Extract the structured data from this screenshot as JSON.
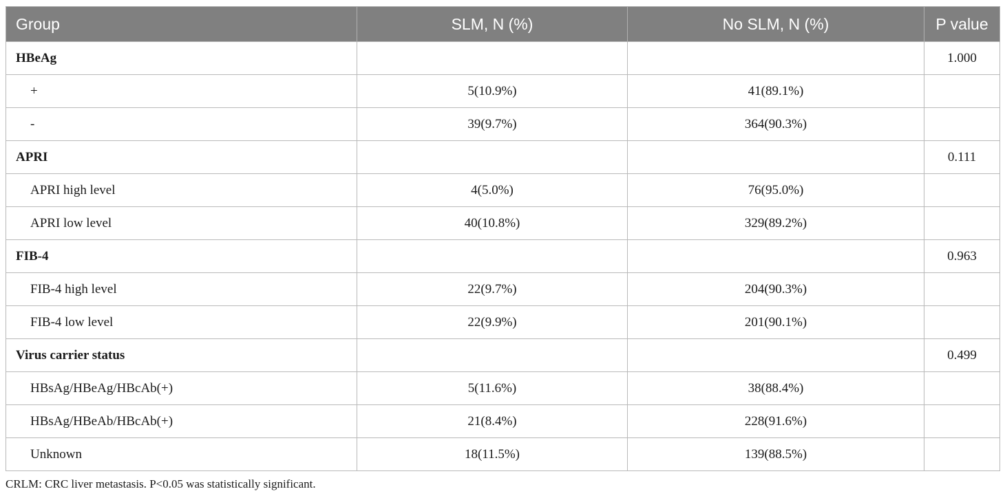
{
  "table": {
    "headers": [
      "Group",
      "SLM, N (%)",
      "No SLM, N (%)",
      "P value"
    ],
    "rows": [
      {
        "type": "group",
        "label": "HBeAg",
        "slm": "",
        "noslm": "",
        "p": "1.000"
      },
      {
        "type": "sub",
        "label": "+",
        "slm": "5(10.9%)",
        "noslm": "41(89.1%)",
        "p": ""
      },
      {
        "type": "sub",
        "label": "-",
        "slm": "39(9.7%)",
        "noslm": "364(90.3%)",
        "p": ""
      },
      {
        "type": "group",
        "label": "APRI",
        "slm": "",
        "noslm": "",
        "p": "0.111"
      },
      {
        "type": "sub",
        "label": "APRI high level",
        "slm": "4(5.0%)",
        "noslm": "76(95.0%)",
        "p": ""
      },
      {
        "type": "sub",
        "label": "APRI low level",
        "slm": "40(10.8%)",
        "noslm": "329(89.2%)",
        "p": ""
      },
      {
        "type": "group",
        "label": "FIB-4",
        "slm": "",
        "noslm": "",
        "p": "0.963"
      },
      {
        "type": "sub",
        "label": "FIB-4 high level",
        "slm": "22(9.7%)",
        "noslm": "204(90.3%)",
        "p": ""
      },
      {
        "type": "sub",
        "label": "FIB-4 low level",
        "slm": "22(9.9%)",
        "noslm": "201(90.1%)",
        "p": ""
      },
      {
        "type": "group",
        "label": "Virus carrier status",
        "slm": "",
        "noslm": "",
        "p": "0.499"
      },
      {
        "type": "sub",
        "label": "HBsAg/HBeAg/HBcAb(+)",
        "slm": "5(11.6%)",
        "noslm": "38(88.4%)",
        "p": ""
      },
      {
        "type": "sub",
        "label": "HBsAg/HBeAb/HBcAb(+)",
        "slm": "21(8.4%)",
        "noslm": "228(91.6%)",
        "p": ""
      },
      {
        "type": "sub",
        "label": "Unknown",
        "slm": "18(11.5%)",
        "noslm": "139(88.5%)",
        "p": ""
      }
    ]
  },
  "footnote": "CRLM: CRC liver metastasis. P<0.05 was statistically significant.",
  "colors": {
    "header_bg": "#808080",
    "header_text": "#ffffff",
    "border": "#b9b9b9"
  }
}
